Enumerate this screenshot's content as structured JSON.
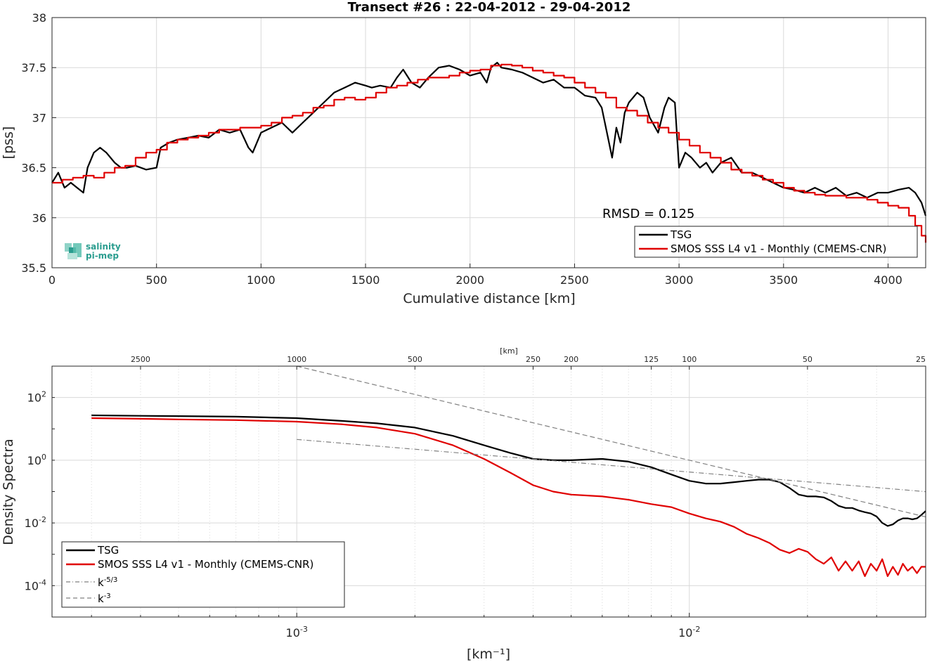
{
  "chart_data": [
    {
      "type": "line",
      "title": "Transect #26 : 22-04-2012 - 29-04-2012",
      "xlabel": "Cumulative distance [km]",
      "ylabel": "[pss]",
      "xlim": [
        0,
        4180
      ],
      "ylim": [
        35.5,
        38
      ],
      "xticks": [
        0,
        500,
        1000,
        1500,
        2000,
        2500,
        3000,
        3500,
        4000
      ],
      "yticks": [
        35.5,
        36,
        36.5,
        37,
        37.5,
        38
      ],
      "grid": true,
      "legend": "bottom-right",
      "annotation": "RMSD = 0.125",
      "logo": [
        "salinity",
        "pi-mep"
      ],
      "series": [
        {
          "name": "TSG",
          "color": "#000000",
          "x": [
            0,
            30,
            60,
            90,
            120,
            150,
            170,
            200,
            230,
            260,
            300,
            330,
            360,
            400,
            450,
            500,
            520,
            560,
            600,
            650,
            700,
            750,
            800,
            850,
            900,
            940,
            960,
            1000,
            1050,
            1100,
            1150,
            1200,
            1250,
            1300,
            1350,
            1400,
            1450,
            1500,
            1530,
            1570,
            1620,
            1650,
            1680,
            1720,
            1760,
            1800,
            1850,
            1900,
            1950,
            2000,
            2050,
            2080,
            2100,
            2130,
            2150,
            2200,
            2250,
            2300,
            2350,
            2400,
            2450,
            2500,
            2550,
            2600,
            2630,
            2660,
            2680,
            2700,
            2720,
            2740,
            2760,
            2800,
            2830,
            2860,
            2900,
            2930,
            2950,
            2980,
            3000,
            3030,
            3060,
            3100,
            3130,
            3160,
            3200,
            3250,
            3300,
            3350,
            3400,
            3450,
            3500,
            3550,
            3600,
            3650,
            3700,
            3750,
            3800,
            3850,
            3900,
            3950,
            4000,
            4050,
            4100,
            4130,
            4160,
            4180
          ],
          "values": [
            36.35,
            36.45,
            36.3,
            36.35,
            36.3,
            36.25,
            36.5,
            36.65,
            36.7,
            36.65,
            36.55,
            36.5,
            36.5,
            36.52,
            36.48,
            36.5,
            36.7,
            36.75,
            36.78,
            36.8,
            36.82,
            36.8,
            36.88,
            36.85,
            36.88,
            36.7,
            36.65,
            36.85,
            36.9,
            36.95,
            36.85,
            36.95,
            37.05,
            37.15,
            37.25,
            37.3,
            37.35,
            37.32,
            37.3,
            37.32,
            37.3,
            37.4,
            37.48,
            37.35,
            37.3,
            37.4,
            37.5,
            37.52,
            37.48,
            37.42,
            37.45,
            37.35,
            37.5,
            37.55,
            37.5,
            37.48,
            37.45,
            37.4,
            37.35,
            37.38,
            37.3,
            37.3,
            37.22,
            37.2,
            37.1,
            36.8,
            36.6,
            36.9,
            36.75,
            37.05,
            37.15,
            37.25,
            37.2,
            37.0,
            36.85,
            37.1,
            37.2,
            37.15,
            36.5,
            36.65,
            36.6,
            36.5,
            36.55,
            36.45,
            36.55,
            36.6,
            36.45,
            36.45,
            36.4,
            36.35,
            36.3,
            36.28,
            36.25,
            36.3,
            36.25,
            36.3,
            36.22,
            36.25,
            36.2,
            36.25,
            36.25,
            36.28,
            36.3,
            36.25,
            36.15,
            36.02
          ]
        },
        {
          "name": "SMOS SSS L4 v1 - Monthly (CMEMS-CNR)",
          "color": "#e00000",
          "x": [
            0,
            50,
            100,
            150,
            200,
            250,
            300,
            350,
            400,
            450,
            500,
            550,
            600,
            650,
            700,
            750,
            800,
            850,
            900,
            950,
            1000,
            1050,
            1100,
            1150,
            1200,
            1250,
            1300,
            1350,
            1400,
            1450,
            1500,
            1550,
            1600,
            1650,
            1700,
            1750,
            1800,
            1850,
            1900,
            1950,
            2000,
            2050,
            2100,
            2150,
            2200,
            2250,
            2300,
            2350,
            2400,
            2450,
            2500,
            2550,
            2600,
            2650,
            2700,
            2750,
            2800,
            2850,
            2900,
            2950,
            3000,
            3050,
            3100,
            3150,
            3200,
            3250,
            3300,
            3350,
            3400,
            3450,
            3500,
            3550,
            3600,
            3650,
            3700,
            3750,
            3800,
            3850,
            3900,
            3950,
            4000,
            4050,
            4100,
            4130,
            4160,
            4180
          ],
          "values": [
            36.35,
            36.38,
            36.4,
            36.42,
            36.4,
            36.45,
            36.5,
            36.52,
            36.6,
            36.65,
            36.68,
            36.75,
            36.78,
            36.8,
            36.82,
            36.85,
            36.88,
            36.88,
            36.9,
            36.9,
            36.92,
            36.95,
            37.0,
            37.02,
            37.05,
            37.1,
            37.12,
            37.18,
            37.2,
            37.18,
            37.2,
            37.25,
            37.3,
            37.32,
            37.35,
            37.38,
            37.4,
            37.4,
            37.42,
            37.45,
            37.47,
            37.48,
            37.52,
            37.53,
            37.52,
            37.5,
            37.47,
            37.45,
            37.42,
            37.4,
            37.35,
            37.3,
            37.25,
            37.2,
            37.1,
            37.07,
            37.02,
            36.95,
            36.9,
            36.85,
            36.78,
            36.72,
            36.65,
            36.6,
            36.55,
            36.48,
            36.45,
            36.42,
            36.38,
            36.35,
            36.3,
            36.27,
            36.25,
            36.23,
            36.22,
            36.22,
            36.2,
            36.2,
            36.18,
            36.15,
            36.12,
            36.1,
            36.02,
            35.92,
            35.82,
            35.75
          ]
        }
      ]
    },
    {
      "type": "line",
      "xlabel": "[km⁻¹]",
      "ylabel": "Density Spectra",
      "xscale": "log",
      "yscale": "log",
      "xlim": [
        0.000238,
        0.04
      ],
      "ylim": [
        1e-05,
        1000
      ],
      "xticks_labels": [
        {
          "value": 0.001,
          "base": "10",
          "exp": "-3"
        },
        {
          "value": 0.01,
          "base": "10",
          "exp": "-2"
        }
      ],
      "yticks_labels": [
        {
          "value": 100,
          "base": "10",
          "exp": "2"
        },
        {
          "value": 1,
          "base": "10",
          "exp": "0"
        },
        {
          "value": 0.01,
          "base": "10",
          "exp": "-2"
        },
        {
          "value": 0.0001,
          "base": "10",
          "exp": "-4"
        }
      ],
      "top_axis_label": "[km]",
      "top_axis_ticks": [
        2500,
        1000,
        500,
        250,
        200,
        125,
        100,
        50,
        25
      ],
      "grid": true,
      "legend": "bottom-left",
      "series": [
        {
          "name": "TSG",
          "color": "#000000",
          "style": "solid",
          "x": [
            0.0003,
            0.0004,
            0.0005,
            0.0007,
            0.001,
            0.0013,
            0.0016,
            0.002,
            0.0025,
            0.003,
            0.0035,
            0.004,
            0.0045,
            0.005,
            0.0055,
            0.006,
            0.007,
            0.008,
            0.009,
            0.01,
            0.011,
            0.012,
            0.013,
            0.014,
            0.015,
            0.016,
            0.017,
            0.018,
            0.019,
            0.02,
            0.021,
            0.022,
            0.023,
            0.024,
            0.025,
            0.026,
            0.027,
            0.028,
            0.029,
            0.03,
            0.031,
            0.032,
            0.033,
            0.034,
            0.035,
            0.036,
            0.037,
            0.038,
            0.039,
            0.04
          ],
          "values": [
            27,
            26,
            25.5,
            24.5,
            22,
            18,
            15,
            11,
            6,
            3,
            1.7,
            1.1,
            1.0,
            1.0,
            1.05,
            1.1,
            0.9,
            0.6,
            0.35,
            0.22,
            0.18,
            0.18,
            0.2,
            0.22,
            0.24,
            0.24,
            0.2,
            0.13,
            0.08,
            0.07,
            0.07,
            0.065,
            0.05,
            0.035,
            0.03,
            0.03,
            0.025,
            0.022,
            0.02,
            0.016,
            0.01,
            0.008,
            0.009,
            0.012,
            0.014,
            0.014,
            0.013,
            0.014,
            0.018,
            0.024
          ]
        },
        {
          "name": "SMOS SSS L4 v1 - Monthly (CMEMS-CNR)",
          "color": "#e00000",
          "style": "solid",
          "x": [
            0.0003,
            0.0004,
            0.0005,
            0.0007,
            0.001,
            0.0013,
            0.0016,
            0.002,
            0.0025,
            0.003,
            0.0035,
            0.004,
            0.0045,
            0.005,
            0.0055,
            0.006,
            0.007,
            0.008,
            0.009,
            0.01,
            0.011,
            0.012,
            0.013,
            0.014,
            0.015,
            0.016,
            0.017,
            0.018,
            0.019,
            0.02,
            0.021,
            0.022,
            0.023,
            0.024,
            0.025,
            0.026,
            0.027,
            0.028,
            0.029,
            0.03,
            0.031,
            0.032,
            0.033,
            0.034,
            0.035,
            0.036,
            0.037,
            0.038,
            0.039,
            0.04
          ],
          "values": [
            22,
            21,
            20,
            19,
            17,
            14,
            11,
            7,
            3,
            1.1,
            0.4,
            0.16,
            0.1,
            0.08,
            0.075,
            0.07,
            0.055,
            0.04,
            0.032,
            0.02,
            0.014,
            0.011,
            0.0075,
            0.0045,
            0.0033,
            0.0023,
            0.0014,
            0.0011,
            0.0015,
            0.0012,
            0.0007,
            0.0005,
            0.0008,
            0.0003,
            0.0006,
            0.0003,
            0.0006,
            0.0002,
            0.0005,
            0.0003,
            0.0007,
            0.0002,
            0.0004,
            0.00022,
            0.0005,
            0.0003,
            0.0004,
            0.00025,
            0.0004,
            0.0004
          ]
        },
        {
          "name": "k-5/3",
          "color": "#808080",
          "style": "dashdot",
          "x": [
            0.001,
            0.04
          ],
          "values": [
            4.6,
            0.0995
          ]
        },
        {
          "name": "k-3",
          "color": "#808080",
          "style": "dashed",
          "x": [
            0.001,
            0.04
          ],
          "values": [
            1000,
            0.0156
          ]
        }
      ]
    }
  ],
  "legend_labels": {
    "tsg": "TSG",
    "smos": "SMOS SSS L4 v1 - Monthly (CMEMS-CNR)",
    "k53_base": "k",
    "k53_exp": "-5/3",
    "k3_base": "k",
    "k3_exp": "-3"
  }
}
